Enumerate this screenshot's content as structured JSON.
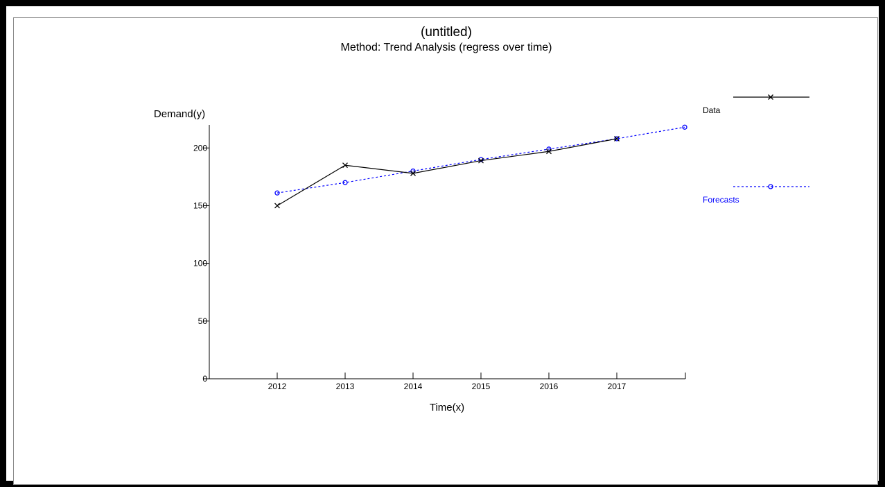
{
  "chart_data": {
    "type": "line",
    "title": "(untitled)",
    "subtitle": "Method: Trend Analysis (regress over time)",
    "xlabel": "Time(x)",
    "ylabel": "Demand(y)",
    "x_categories": [
      "2012",
      "2013",
      "2014",
      "2015",
      "2016",
      "2017",
      ""
    ],
    "x_tick_labels": [
      "2012",
      "2013",
      "2014",
      "2015",
      "2016",
      "2017"
    ],
    "ylim": [
      0,
      220
    ],
    "y_ticks": [
      0,
      50,
      100,
      150,
      200
    ],
    "grid": false,
    "legend_position": "right",
    "series": [
      {
        "name": "Data",
        "color": "#000000",
        "marker": "x",
        "dash": "solid",
        "values": [
          150,
          185,
          178,
          189,
          197,
          208,
          null
        ]
      },
      {
        "name": "Forecasts",
        "color": "#0000ff",
        "marker": "o",
        "dash": "dashed",
        "values": [
          161,
          170,
          180,
          190,
          199,
          208,
          218
        ]
      }
    ]
  }
}
